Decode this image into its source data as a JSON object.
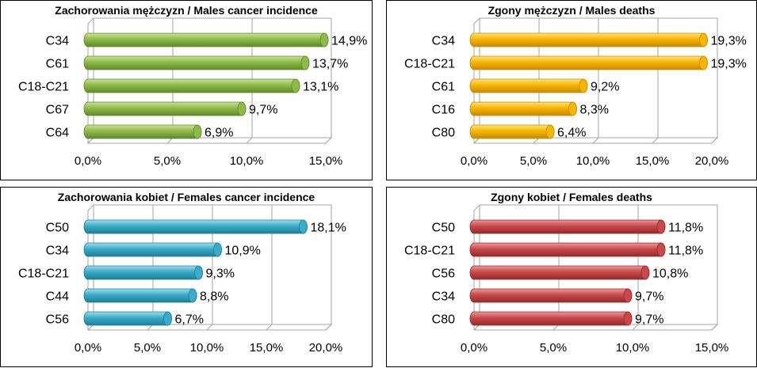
{
  "charts": [
    {
      "id": "p0",
      "type": "bar",
      "title": "Zachorowania mężczyzn / Males cancer incidence",
      "categories": [
        "C34",
        "C61",
        "C18-C21",
        "C67",
        "C64"
      ],
      "values": [
        14.9,
        13.7,
        13.1,
        9.7,
        6.9
      ],
      "labels": [
        "14,9%",
        "13,7%",
        "13,1%",
        "9,7%",
        "6,9%"
      ],
      "ticks": [
        "0,0%",
        "5,0%",
        "10,0%",
        "15,0%"
      ],
      "xlim": [
        0,
        15
      ],
      "color": "#8fba4a",
      "color_light": "#c9e39a",
      "color_dark": "#5f8a28"
    },
    {
      "id": "p1",
      "type": "bar",
      "title": "Zgony mężczyzn / Males deaths",
      "categories": [
        "C34",
        "C18-C21",
        "C61",
        "C16",
        "C80"
      ],
      "values": [
        19.3,
        19.3,
        9.2,
        8.3,
        6.4
      ],
      "labels": [
        "19,3%",
        "19,3%",
        "9,2%",
        "8,3%",
        "6,4%"
      ],
      "ticks": [
        "0,0%",
        "5,0%",
        "10,0%",
        "15,0%",
        "20,0%"
      ],
      "xlim": [
        0,
        20
      ],
      "color": "#f7b500",
      "color_light": "#ffe27a",
      "color_dark": "#c88a00"
    },
    {
      "id": "p2",
      "type": "bar",
      "title": "Zachorowania kobiet / Females cancer incidence",
      "categories": [
        "C50",
        "C34",
        "C18-C21",
        "C44",
        "C56"
      ],
      "values": [
        18.1,
        10.9,
        9.3,
        8.8,
        6.7
      ],
      "labels": [
        "18,1%",
        "10,9%",
        "9,3%",
        "8,8%",
        "6,7%"
      ],
      "ticks": [
        "0,0%",
        "5,0%",
        "10,0%",
        "15,0%",
        "20,0%"
      ],
      "xlim": [
        0,
        20
      ],
      "color": "#3aabc8",
      "color_light": "#9fdcec",
      "color_dark": "#1d7f9a"
    },
    {
      "id": "p3",
      "type": "bar",
      "title": "Zgony kobiet / Females deaths",
      "categories": [
        "C50",
        "C18-C21",
        "C56",
        "C34",
        "C80"
      ],
      "values": [
        11.8,
        11.8,
        10.8,
        9.7,
        9.7
      ],
      "labels": [
        "11,8%",
        "11,8%",
        "10,8%",
        "9,7%",
        "9,7%"
      ],
      "ticks": [
        "0,0%",
        "5,0%",
        "10,0%",
        "15,0%"
      ],
      "xlim": [
        0,
        15
      ],
      "color": "#c9494a",
      "color_light": "#ea9a9a",
      "color_dark": "#962a2b"
    }
  ]
}
